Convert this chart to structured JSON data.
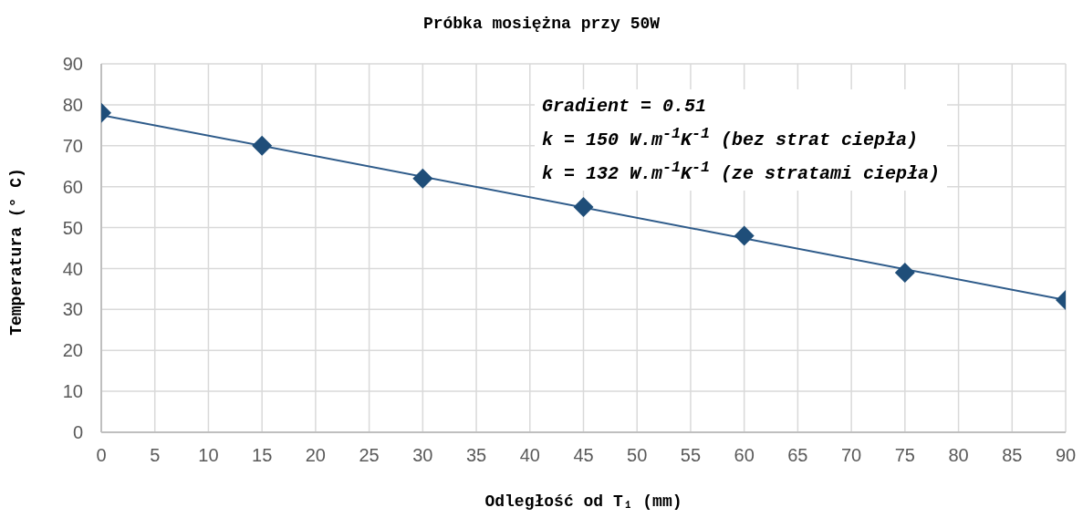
{
  "chart_data": {
    "type": "scatter",
    "title": "Próbka mosiężna przy 50W",
    "xlabel": "Odległość od T₁ (mm)",
    "ylabel": "Temperatura (° C)",
    "x": [
      0,
      15,
      30,
      45,
      60,
      75,
      90
    ],
    "series": [
      {
        "color": "#1f4e79",
        "marker": "diamond",
        "values": [
          78,
          70,
          62,
          55,
          48,
          39,
          32.3
        ]
      },
      {
        "type": "line",
        "color": "#2e5b8a",
        "x": [
          0,
          90
        ],
        "values": [
          77.5,
          32.3
        ]
      }
    ],
    "annotations": [
      "Gradient = 0.51",
      "k = 150 W.m$^{-1}$K$^{-1}$ (bez strat ciepła)",
      "k = 132 W.m$^{-1}$K$^{-1}$ (ze stratami ciepła)"
    ],
    "xlim": [
      0,
      90
    ],
    "xticks": [
      0,
      5,
      10,
      15,
      20,
      25,
      30,
      35,
      40,
      45,
      50,
      55,
      60,
      65,
      70,
      75,
      80,
      85,
      90
    ],
    "ylim": [
      0,
      90
    ],
    "yticks": [
      0,
      10,
      20,
      30,
      40,
      50,
      60,
      70,
      80,
      90
    ],
    "grid": true,
    "legend": false
  }
}
